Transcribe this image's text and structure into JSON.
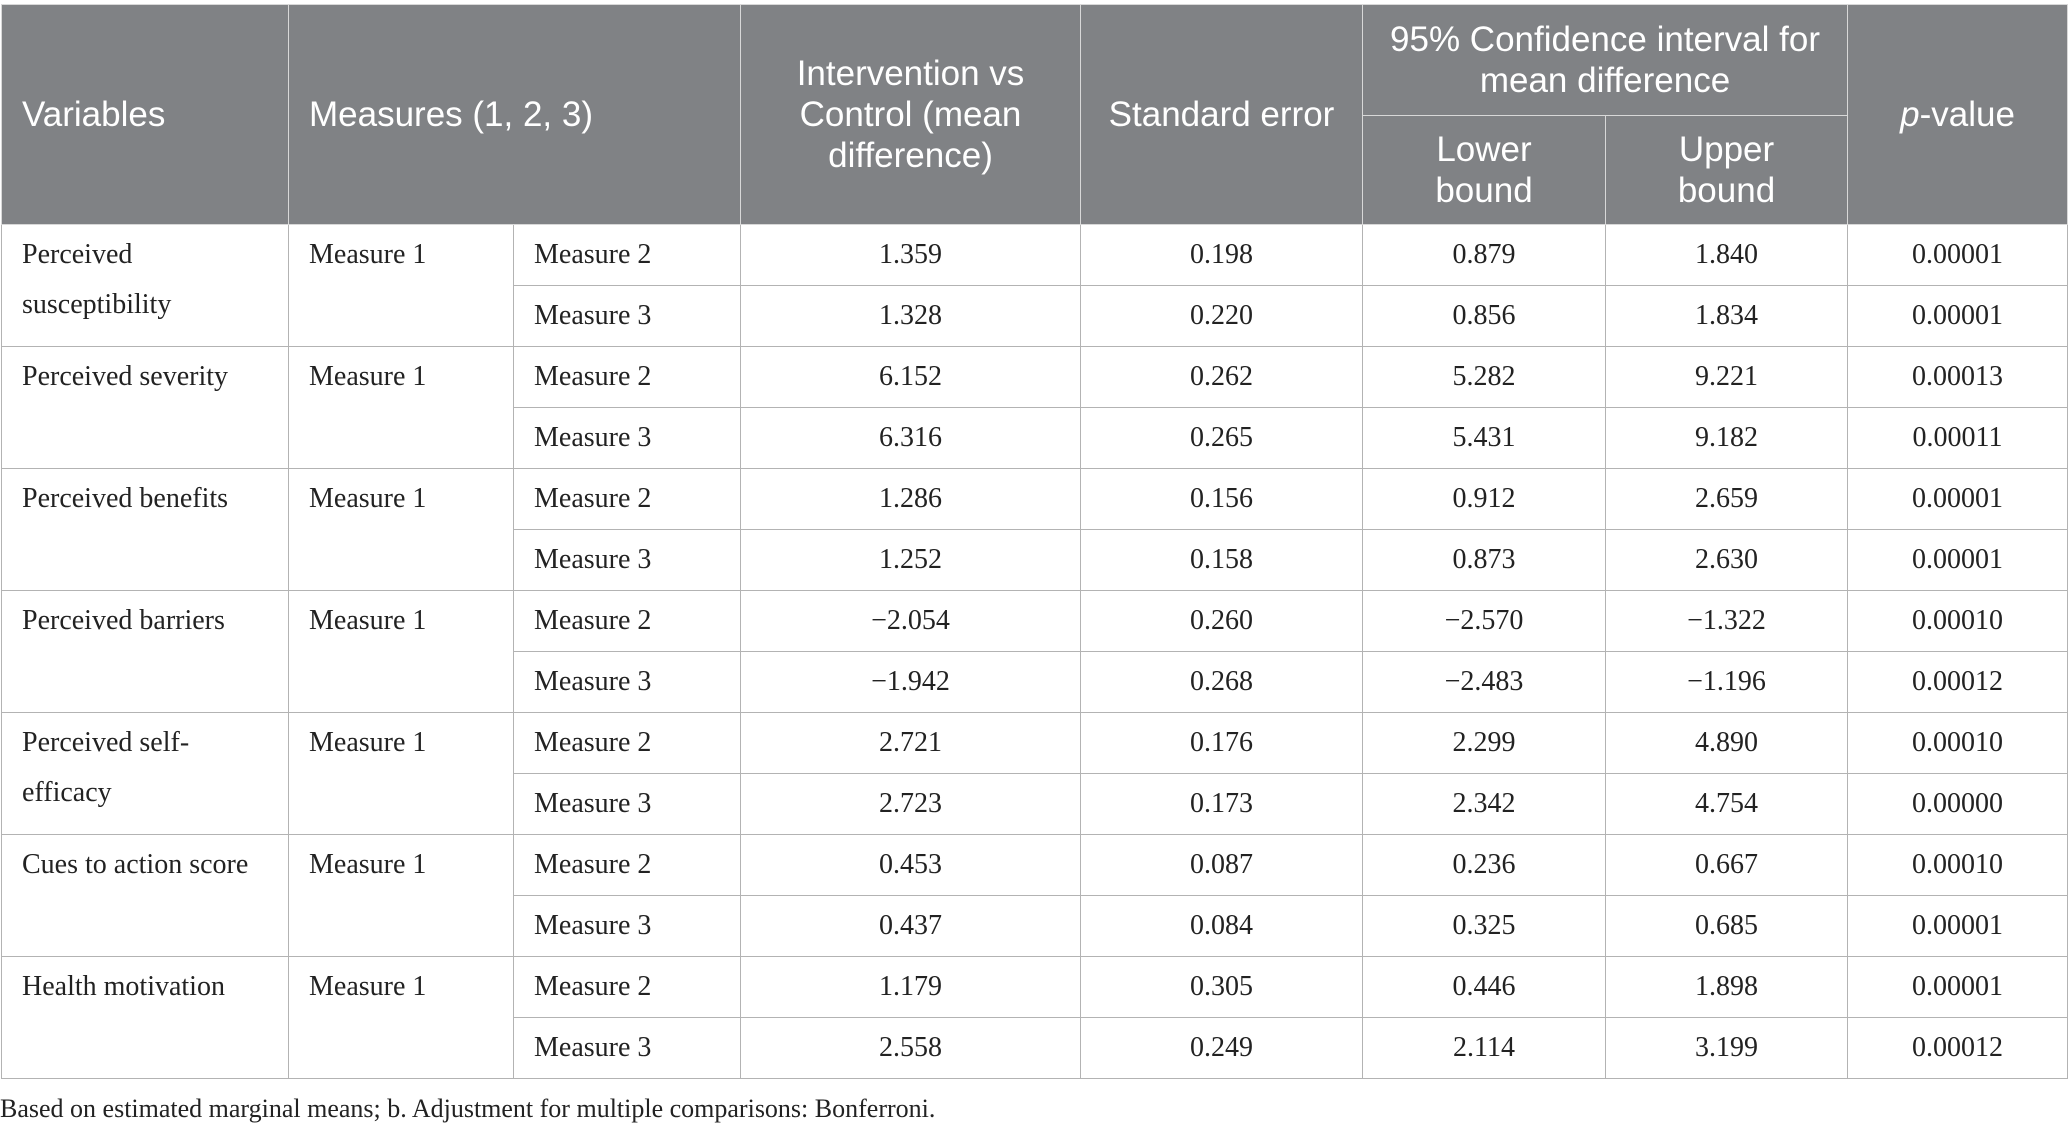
{
  "headers": {
    "variables": "Variables",
    "measures": "Measures (1, 2, 3)",
    "mean_diff": "Intervention vs Control (mean difference)",
    "std_error": "Standard error",
    "ci": "95% Confidence interval for mean difference",
    "lower": "Lower bound",
    "upper": "Upper bound",
    "p_italic": "p",
    "p_rest": "-value"
  },
  "groups": [
    {
      "variable": "Perceived susceptibility",
      "base": "Measure 1",
      "rows": [
        {
          "measure": "Measure 2",
          "diff": "1.359",
          "se": "0.198",
          "lower": "0.879",
          "upper": "1.840",
          "p": "0.00001"
        },
        {
          "measure": "Measure 3",
          "diff": "1.328",
          "se": "0.220",
          "lower": "0.856",
          "upper": "1.834",
          "p": "0.00001"
        }
      ]
    },
    {
      "variable": "Perceived severity",
      "base": "Measure 1",
      "rows": [
        {
          "measure": "Measure 2",
          "diff": "6.152",
          "se": "0.262",
          "lower": "5.282",
          "upper": "9.221",
          "p": "0.00013"
        },
        {
          "measure": "Measure 3",
          "diff": "6.316",
          "se": "0.265",
          "lower": "5.431",
          "upper": "9.182",
          "p": "0.00011"
        }
      ]
    },
    {
      "variable": "Perceived benefits",
      "base": "Measure 1",
      "rows": [
        {
          "measure": "Measure 2",
          "diff": "1.286",
          "se": "0.156",
          "lower": "0.912",
          "upper": "2.659",
          "p": "0.00001"
        },
        {
          "measure": "Measure 3",
          "diff": "1.252",
          "se": "0.158",
          "lower": "0.873",
          "upper": "2.630",
          "p": "0.00001"
        }
      ]
    },
    {
      "variable": "Perceived barriers",
      "base": "Measure 1",
      "rows": [
        {
          "measure": "Measure 2",
          "diff": "−2.054",
          "se": "0.260",
          "lower": "−2.570",
          "upper": "−1.322",
          "p": "0.00010"
        },
        {
          "measure": "Measure 3",
          "diff": "−1.942",
          "se": "0.268",
          "lower": "−2.483",
          "upper": "−1.196",
          "p": "0.00012"
        }
      ]
    },
    {
      "variable": "Perceived self-efficacy",
      "base": "Measure 1",
      "rows": [
        {
          "measure": "Measure 2",
          "diff": "2.721",
          "se": "0.176",
          "lower": "2.299",
          "upper": "4.890",
          "p": "0.00010"
        },
        {
          "measure": "Measure 3",
          "diff": "2.723",
          "se": "0.173",
          "lower": "2.342",
          "upper": "4.754",
          "p": "0.00000"
        }
      ]
    },
    {
      "variable": "Cues to action score",
      "base": "Measure 1",
      "rows": [
        {
          "measure": "Measure 2",
          "diff": "0.453",
          "se": "0.087",
          "lower": "0.236",
          "upper": "0.667",
          "p": "0.00010"
        },
        {
          "measure": "Measure 3",
          "diff": "0.437",
          "se": "0.084",
          "lower": "0.325",
          "upper": "0.685",
          "p": "0.00001"
        }
      ]
    },
    {
      "variable": "Health motivation",
      "base": "Measure 1",
      "rows": [
        {
          "measure": "Measure 2",
          "diff": "1.179",
          "se": "0.305",
          "lower": "0.446",
          "upper": "1.898",
          "p": "0.00001"
        },
        {
          "measure": "Measure 3",
          "diff": "2.558",
          "se": "0.249",
          "lower": "2.114",
          "upper": "3.199",
          "p": "0.00012"
        }
      ]
    }
  ],
  "footnote": "Based on estimated marginal means; b. Adjustment for multiple comparisons: Bonferroni."
}
